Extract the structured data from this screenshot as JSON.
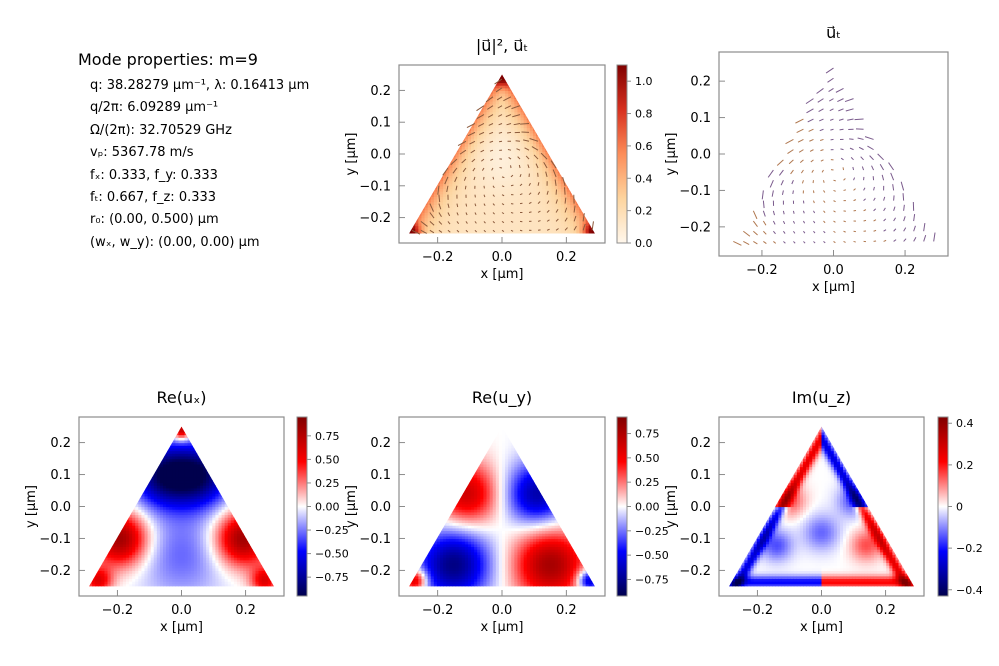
{
  "mode_properties": {
    "title": "Mode properties: m=9",
    "rows": [
      "q: 38.28279 µm⁻¹, λ: 0.16413 µm",
      "q/2π: 6.09289 µm⁻¹",
      "Ω/(2π): 32.70529 GHz",
      "vₚ: 5367.78 m/s",
      "fₓ: 0.333, f_y: 0.333",
      "fₜ: 0.667, f_z: 0.333",
      "r₀: (0.00, 0.500) µm",
      "(wₓ, w_y): (0.00, 0.00) µm"
    ]
  },
  "chart_data": [
    {
      "type": "heatmap",
      "title": "|u⃗|², u⃗ₜ",
      "field": "intensity_with_vectors",
      "xlabel": "x [µm]",
      "ylabel": "y [µm]",
      "xlim": [
        -0.32,
        0.32
      ],
      "ylim": [
        -0.28,
        0.28
      ],
      "xticks": [
        -0.2,
        0.0,
        0.2
      ],
      "xtick_labels": [
        "−0.2",
        "0.0",
        "0.2"
      ],
      "yticks": [
        0.2,
        0.1,
        0.0,
        -0.1,
        -0.2
      ],
      "ytick_labels": [
        "0.2",
        "0.1",
        "0.0",
        "−0.1",
        "−0.2"
      ],
      "colormap": "OrRd",
      "colorbar": {
        "ticks": [
          0.0,
          0.2,
          0.4,
          0.6,
          0.8,
          1.0
        ],
        "labels": [
          "0.0",
          "0.2",
          "0.4",
          "0.6",
          "0.8",
          "1.0"
        ],
        "range": [
          0,
          1.1
        ]
      },
      "grid": false
    },
    {
      "type": "heatmap",
      "title": "u⃗ₜ",
      "field": "vectors_only",
      "xlabel": "x [µm]",
      "ylabel": "y [µm]",
      "xlim": [
        -0.32,
        0.32
      ],
      "ylim": [
        -0.28,
        0.28
      ],
      "xticks": [
        -0.2,
        0.0,
        0.2
      ],
      "xtick_labels": [
        "−0.2",
        "0.0",
        "0.2"
      ],
      "yticks": [
        0.2,
        0.1,
        0.0,
        -0.1,
        -0.2
      ],
      "ytick_labels": [
        "0.2",
        "0.1",
        "0.0",
        "−0.1",
        "−0.2"
      ],
      "grid": false
    },
    {
      "type": "heatmap",
      "title": "Re(uₓ)",
      "field": "re_ux",
      "xlabel": "x [µm]",
      "ylabel": "y [µm]",
      "xlim": [
        -0.32,
        0.32
      ],
      "ylim": [
        -0.28,
        0.28
      ],
      "xticks": [
        -0.2,
        0.0,
        0.2
      ],
      "xtick_labels": [
        "−0.2",
        "0.0",
        "0.2"
      ],
      "yticks": [
        0.2,
        0.1,
        0.0,
        -0.1,
        -0.2
      ],
      "ytick_labels": [
        "0.2",
        "0.1",
        "0.0",
        "−0.1",
        "−0.2"
      ],
      "colormap": "seismic",
      "colorbar": {
        "ticks": [
          0.75,
          0.5,
          0.25,
          0.0,
          -0.25,
          -0.5,
          -0.75
        ],
        "labels": [
          "0.75",
          "0.50",
          "0.25",
          "0.00",
          "−0.25",
          "−0.50",
          "−0.75"
        ],
        "range": [
          -0.95,
          0.95
        ]
      },
      "grid": false
    },
    {
      "type": "heatmap",
      "title": "Re(u_y)",
      "field": "re_uy",
      "xlabel": "x [µm]",
      "ylabel": "y [µm]",
      "xlim": [
        -0.32,
        0.32
      ],
      "ylim": [
        -0.28,
        0.28
      ],
      "xticks": [
        -0.2,
        0.0,
        0.2
      ],
      "xtick_labels": [
        "−0.2",
        "0.0",
        "0.2"
      ],
      "yticks": [
        0.2,
        0.1,
        0.0,
        -0.1,
        -0.2
      ],
      "ytick_labels": [
        "0.2",
        "0.1",
        "0.0",
        "−0.1",
        "−0.2"
      ],
      "colormap": "seismic",
      "colorbar": {
        "ticks": [
          0.75,
          0.5,
          0.25,
          0.0,
          -0.25,
          -0.5,
          -0.75
        ],
        "labels": [
          "0.75",
          "0.50",
          "0.25",
          "0.00",
          "−0.25",
          "−0.50",
          "−0.75"
        ],
        "range": [
          -0.92,
          0.92
        ]
      },
      "grid": false
    },
    {
      "type": "heatmap",
      "title": "Im(u_z)",
      "field": "im_uz",
      "xlabel": "x [µm]",
      "ylabel": "y [µm]",
      "xlim": [
        -0.32,
        0.32
      ],
      "ylim": [
        -0.28,
        0.28
      ],
      "xticks": [
        -0.2,
        0.0,
        0.2
      ],
      "xtick_labels": [
        "−0.2",
        "0.0",
        "0.2"
      ],
      "yticks": [
        0.2,
        0.1,
        0.0,
        -0.1,
        -0.2
      ],
      "ytick_labels": [
        "0.2",
        "0.1",
        "0.0",
        "−0.1",
        "−0.2"
      ],
      "colormap": "seismic",
      "colorbar": {
        "ticks": [
          0.4,
          0.2,
          0.0,
          -0.2,
          -0.4
        ],
        "labels": [
          "0.4",
          "0.2",
          "0",
          "−0.2",
          "−0.4"
        ],
        "range": [
          -0.43,
          0.43
        ]
      },
      "grid": false
    }
  ]
}
